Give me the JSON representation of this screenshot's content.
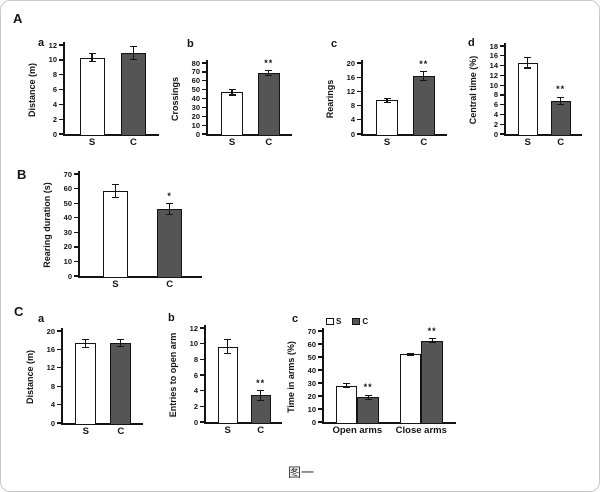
{
  "caption": "图一",
  "section_labels": {
    "A": "A",
    "B": "B",
    "C": "C"
  },
  "colors": {
    "s_fill": "#ffffff",
    "c_fill": "#555555",
    "axis": "#141414",
    "canvas_border": "#c9c9c9"
  },
  "chart_data": [
    {
      "id": "A-a",
      "sublabel": "a",
      "type": "bar",
      "title": "",
      "xlabel": "",
      "ylabel": "Distance (m)",
      "ylim": [
        0,
        12
      ],
      "ytick_step": 2,
      "categories": [
        "S",
        "C"
      ],
      "values": [
        10.3,
        10.9
      ],
      "errors": [
        0.5,
        0.9
      ],
      "sig": [
        "",
        ""
      ]
    },
    {
      "id": "A-b",
      "sublabel": "b",
      "type": "bar",
      "title": "",
      "xlabel": "",
      "ylabel": "Crossings",
      "ylim": [
        0,
        80
      ],
      "ytick_step": 10,
      "categories": [
        "S",
        "C"
      ],
      "values": [
        47,
        68.5
      ],
      "errors": [
        3,
        3
      ],
      "sig": [
        "",
        "**"
      ]
    },
    {
      "id": "A-c",
      "sublabel": "c",
      "type": "bar",
      "title": "",
      "xlabel": "",
      "ylabel": "Rearings",
      "ylim": [
        0,
        20
      ],
      "ytick_step": 4,
      "categories": [
        "S",
        "C"
      ],
      "values": [
        9.5,
        16.3
      ],
      "errors": [
        0.6,
        1.3
      ],
      "sig": [
        "",
        "**"
      ]
    },
    {
      "id": "A-d",
      "sublabel": "d",
      "type": "bar",
      "title": "",
      "xlabel": "",
      "ylabel": "Central time (%)",
      "ylim": [
        0,
        18
      ],
      "ytick_step": 2,
      "categories": [
        "S",
        "C"
      ],
      "values": [
        14.6,
        6.8
      ],
      "errors": [
        1.1,
        0.7
      ],
      "sig": [
        "",
        "**"
      ]
    },
    {
      "id": "B",
      "sublabel": "",
      "type": "bar",
      "title": "",
      "xlabel": "",
      "ylabel": "Rearing duration (s)",
      "ylim": [
        0,
        70
      ],
      "ytick_step": 10,
      "categories": [
        "S",
        "C"
      ],
      "values": [
        58.5,
        46
      ],
      "errors": [
        4.5,
        3.5
      ],
      "sig": [
        "",
        "*"
      ]
    },
    {
      "id": "C-a",
      "sublabel": "a",
      "type": "bar",
      "title": "",
      "xlabel": "",
      "ylabel": "Distance (m)",
      "ylim": [
        0,
        20
      ],
      "ytick_step": 4,
      "categories": [
        "S",
        "C"
      ],
      "values": [
        17.3,
        17.4
      ],
      "errors": [
        0.8,
        0.8
      ],
      "sig": [
        "",
        ""
      ]
    },
    {
      "id": "C-b",
      "sublabel": "b",
      "type": "bar",
      "title": "",
      "xlabel": "",
      "ylabel": "Entries to open arm",
      "ylim": [
        0,
        12
      ],
      "ytick_step": 2,
      "categories": [
        "S",
        "C"
      ],
      "values": [
        9.6,
        3.4
      ],
      "errors": [
        0.9,
        0.6
      ],
      "sig": [
        "",
        "**"
      ]
    },
    {
      "id": "C-c",
      "sublabel": "c",
      "type": "grouped-bar",
      "title": "",
      "xlabel": "",
      "ylabel": "Time in arms (%)",
      "ylim": [
        0,
        70
      ],
      "ytick_step": 10,
      "categories": [
        "Open arms",
        "Close arms"
      ],
      "legend": [
        "S",
        "C"
      ],
      "legend_position": "top-left",
      "series": [
        {
          "name": "S",
          "values": [
            28,
            52
          ],
          "errors": [
            1.5,
            0.8
          ],
          "sig": [
            "",
            ""
          ]
        },
        {
          "name": "C",
          "values": [
            19,
            62.5
          ],
          "errors": [
            1.5,
            1.5
          ],
          "sig": [
            "**",
            "**"
          ]
        }
      ]
    }
  ]
}
